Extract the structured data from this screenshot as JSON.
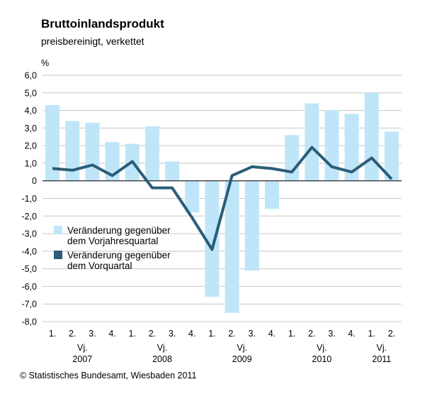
{
  "chart_data": {
    "type": "bar",
    "title": "Bruttoinlandsprodukt",
    "subtitle": "preisbereinigt, verkettet",
    "ylabel": "%",
    "ylim": [
      -8,
      6
    ],
    "ytick_labels": [
      "6,0",
      "5,0",
      "4,0",
      "3,0",
      "2,0",
      "1,0",
      "0",
      "-1,0",
      "-2,0",
      "-3,0",
      "-4,0",
      "-5,0",
      "-6,0",
      "-7,0",
      "-8,0"
    ],
    "categories": [
      "1.",
      "2.",
      "3.",
      "4.",
      "1.",
      "2.",
      "3.",
      "4.",
      "1.",
      "2.",
      "3.",
      "4.",
      "1.",
      "2.",
      "3.",
      "4.",
      "1.",
      "2."
    ],
    "year_groups": [
      {
        "prefix": "Vj.",
        "year": "2007"
      },
      {
        "prefix": "Vj.",
        "year": "2008"
      },
      {
        "prefix": "Vj.",
        "year": "2009"
      },
      {
        "prefix": "Vj.",
        "year": "2010"
      },
      {
        "prefix": "Vj.",
        "year": "2011"
      }
    ],
    "series": [
      {
        "name": "Veränderung gegenüber dem Vorjahresquartal",
        "legend_lines": [
          "Veränderung gegenüber",
          "dem Vorjahresquartal"
        ],
        "type": "bar",
        "color": "#bfe6f8",
        "values": [
          4.3,
          3.4,
          3.3,
          2.2,
          2.1,
          3.1,
          1.1,
          -1.8,
          -6.6,
          -7.5,
          -5.1,
          -1.6,
          2.6,
          4.4,
          4.0,
          3.8,
          5.0,
          2.8
        ]
      },
      {
        "name": "Veränderung gegenüber dem Vorquartal",
        "legend_lines": [
          "Veränderung gegenüber",
          "dem Vorquartal"
        ],
        "type": "line",
        "color": "#2b5d78",
        "values": [
          0.7,
          0.6,
          0.9,
          0.3,
          1.1,
          -0.4,
          -0.4,
          -2.1,
          -3.9,
          0.3,
          0.8,
          0.7,
          0.5,
          1.9,
          0.8,
          0.5,
          1.3,
          0.1
        ]
      }
    ],
    "grid": true
  },
  "footer": {
    "copyright": "© Statistisches Bundesamt, Wiesbaden 2011"
  }
}
